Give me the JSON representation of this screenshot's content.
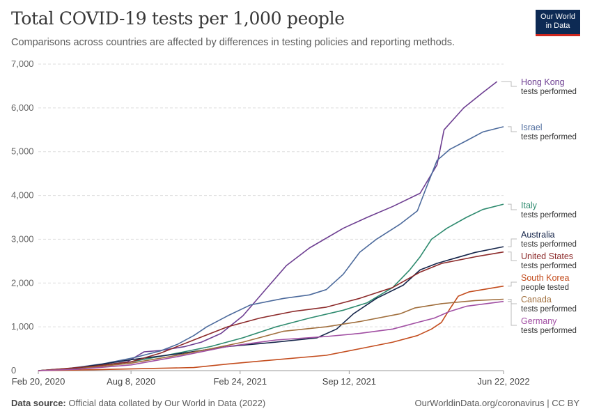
{
  "header": {
    "title": "Total COVID-19 tests per 1,000 people",
    "subtitle": "Comparisons across countries are affected by differences in testing policies and reporting methods.",
    "logo_line1": "Our World",
    "logo_line2": "in Data"
  },
  "footer": {
    "source_label": "Data source:",
    "source_text": "Official data collated by Our World in Data (2022)",
    "right_text": "OurWorldinData.org/coronavirus | CC BY"
  },
  "chart_data": {
    "type": "line",
    "title": "Total COVID-19 tests per 1,000 people",
    "ylim": [
      0,
      7000
    ],
    "y_ticks": [
      0,
      1000,
      2000,
      3000,
      4000,
      5000,
      6000,
      7000
    ],
    "y_tick_labels": [
      "0",
      "1,000",
      "2,000",
      "3,000",
      "4,000",
      "5,000",
      "6,000",
      "7,000"
    ],
    "x_range": [
      "2020-02-20",
      "2022-06-22"
    ],
    "x_ticks": [
      "2020-02-20",
      "2020-08-08",
      "2021-02-24",
      "2021-09-12",
      "2022-06-22"
    ],
    "x_tick_labels": [
      "Feb 20, 2020",
      "Aug 8, 2020",
      "Feb 24, 2021",
      "Sep 12, 2021",
      "Jun 22, 2022"
    ],
    "grid": "horizontal-dashed",
    "legend": "right",
    "series": [
      {
        "name": "Hong Kong",
        "metric": "tests performed",
        "color": "#6d3e91",
        "points": [
          [
            "2020-02-20",
            0
          ],
          [
            "2020-05-01",
            50
          ],
          [
            "2020-08-01",
            200
          ],
          [
            "2020-09-01",
            430
          ],
          [
            "2020-10-01",
            460
          ],
          [
            "2020-11-15",
            550
          ],
          [
            "2020-12-15",
            650
          ],
          [
            "2021-01-20",
            850
          ],
          [
            "2021-03-01",
            1250
          ],
          [
            "2021-04-15",
            1900
          ],
          [
            "2021-05-20",
            2400
          ],
          [
            "2021-07-01",
            2800
          ],
          [
            "2021-09-01",
            3250
          ],
          [
            "2021-10-15",
            3500
          ],
          [
            "2021-12-01",
            3750
          ],
          [
            "2022-01-20",
            4050
          ],
          [
            "2022-02-20",
            4700
          ],
          [
            "2022-03-05",
            5500
          ],
          [
            "2022-04-10",
            6000
          ],
          [
            "2022-05-15",
            6350
          ],
          [
            "2022-06-10",
            6600
          ]
        ]
      },
      {
        "name": "Israel",
        "metric": "tests performed",
        "color": "#4c6a9c",
        "points": [
          [
            "2020-02-20",
            0
          ],
          [
            "2020-04-15",
            50
          ],
          [
            "2020-06-15",
            150
          ],
          [
            "2020-08-15",
            300
          ],
          [
            "2020-10-01",
            450
          ],
          [
            "2020-11-01",
            600
          ],
          [
            "2020-12-01",
            800
          ],
          [
            "2020-12-25",
            1000
          ],
          [
            "2021-02-01",
            1250
          ],
          [
            "2021-03-15",
            1500
          ],
          [
            "2021-05-15",
            1650
          ],
          [
            "2021-07-01",
            1730
          ],
          [
            "2021-08-01",
            1850
          ],
          [
            "2021-09-01",
            2200
          ],
          [
            "2021-10-01",
            2700
          ],
          [
            "2021-11-01",
            3000
          ],
          [
            "2021-12-15",
            3350
          ],
          [
            "2022-01-15",
            3650
          ],
          [
            "2022-02-01",
            4200
          ],
          [
            "2022-02-20",
            4800
          ],
          [
            "2022-03-15",
            5050
          ],
          [
            "2022-04-15",
            5250
          ],
          [
            "2022-05-15",
            5450
          ],
          [
            "2022-06-22",
            5570
          ]
        ]
      },
      {
        "name": "Italy",
        "metric": "tests performed",
        "color": "#2d8a6e",
        "points": [
          [
            "2020-02-20",
            0
          ],
          [
            "2020-05-01",
            60
          ],
          [
            "2020-08-08",
            200
          ],
          [
            "2020-11-01",
            400
          ],
          [
            "2021-01-01",
            550
          ],
          [
            "2021-03-01",
            750
          ],
          [
            "2021-05-01",
            1000
          ],
          [
            "2021-07-01",
            1200
          ],
          [
            "2021-09-01",
            1380
          ],
          [
            "2021-10-15",
            1550
          ],
          [
            "2021-12-01",
            1900
          ],
          [
            "2022-01-01",
            2300
          ],
          [
            "2022-01-20",
            2600
          ],
          [
            "2022-02-10",
            3000
          ],
          [
            "2022-03-10",
            3250
          ],
          [
            "2022-04-15",
            3500
          ],
          [
            "2022-05-15",
            3680
          ],
          [
            "2022-06-22",
            3800
          ]
        ]
      },
      {
        "name": "Australia",
        "metric": "tests performed",
        "color": "#15254a",
        "points": [
          [
            "2020-02-20",
            0
          ],
          [
            "2020-05-01",
            60
          ],
          [
            "2020-08-08",
            250
          ],
          [
            "2020-11-01",
            380
          ],
          [
            "2021-02-01",
            550
          ],
          [
            "2021-05-01",
            650
          ],
          [
            "2021-07-15",
            750
          ],
          [
            "2021-08-20",
            950
          ],
          [
            "2021-09-20",
            1300
          ],
          [
            "2021-11-01",
            1650
          ],
          [
            "2021-12-20",
            1950
          ],
          [
            "2022-01-20",
            2300
          ],
          [
            "2022-02-20",
            2450
          ],
          [
            "2022-03-20",
            2550
          ],
          [
            "2022-05-01",
            2700
          ],
          [
            "2022-06-22",
            2830
          ]
        ]
      },
      {
        "name": "United States",
        "metric": "tests performed",
        "color": "#8c2a2a",
        "points": [
          [
            "2020-02-20",
            0
          ],
          [
            "2020-04-01",
            40
          ],
          [
            "2020-06-01",
            100
          ],
          [
            "2020-08-08",
            200
          ],
          [
            "2020-10-01",
            400
          ],
          [
            "2020-12-01",
            700
          ],
          [
            "2021-02-01",
            1000
          ],
          [
            "2021-04-01",
            1200
          ],
          [
            "2021-06-01",
            1350
          ],
          [
            "2021-08-01",
            1450
          ],
          [
            "2021-10-01",
            1650
          ],
          [
            "2021-12-01",
            1900
          ],
          [
            "2022-01-20",
            2250
          ],
          [
            "2022-03-01",
            2450
          ],
          [
            "2022-05-01",
            2600
          ],
          [
            "2022-06-22",
            2710
          ]
        ]
      },
      {
        "name": "South Korea",
        "metric": "people tested",
        "color": "#c34c1d",
        "points": [
          [
            "2020-02-20",
            0
          ],
          [
            "2020-06-01",
            20
          ],
          [
            "2020-12-01",
            70
          ],
          [
            "2021-02-01",
            150
          ],
          [
            "2021-05-01",
            250
          ],
          [
            "2021-08-01",
            350
          ],
          [
            "2021-10-01",
            500
          ],
          [
            "2021-12-01",
            650
          ],
          [
            "2022-01-15",
            800
          ],
          [
            "2022-02-10",
            950
          ],
          [
            "2022-02-28",
            1100
          ],
          [
            "2022-03-15",
            1400
          ],
          [
            "2022-03-31",
            1700
          ],
          [
            "2022-04-20",
            1800
          ],
          [
            "2022-06-22",
            1930
          ]
        ]
      },
      {
        "name": "Canada",
        "metric": "tests performed",
        "color": "#a06e3c",
        "points": [
          [
            "2020-02-20",
            0
          ],
          [
            "2020-05-01",
            40
          ],
          [
            "2020-08-08",
            170
          ],
          [
            "2020-11-01",
            350
          ],
          [
            "2021-01-01",
            500
          ],
          [
            "2021-03-01",
            650
          ],
          [
            "2021-05-15",
            900
          ],
          [
            "2021-08-01",
            1000
          ],
          [
            "2021-10-01",
            1120
          ],
          [
            "2021-12-15",
            1300
          ],
          [
            "2022-01-10",
            1430
          ],
          [
            "2022-03-01",
            1530
          ],
          [
            "2022-05-01",
            1600
          ],
          [
            "2022-06-22",
            1630
          ]
        ]
      },
      {
        "name": "Germany",
        "metric": "tests performed",
        "color": "#a14fa3",
        "points": [
          [
            "2020-02-20",
            0
          ],
          [
            "2020-05-01",
            30
          ],
          [
            "2020-08-08",
            130
          ],
          [
            "2020-11-01",
            320
          ],
          [
            "2021-02-01",
            550
          ],
          [
            "2021-05-01",
            700
          ],
          [
            "2021-08-01",
            780
          ],
          [
            "2021-10-01",
            850
          ],
          [
            "2021-12-01",
            950
          ],
          [
            "2022-01-15",
            1100
          ],
          [
            "2022-02-15",
            1200
          ],
          [
            "2022-03-15",
            1350
          ],
          [
            "2022-04-15",
            1470
          ],
          [
            "2022-06-22",
            1580
          ]
        ]
      }
    ]
  }
}
